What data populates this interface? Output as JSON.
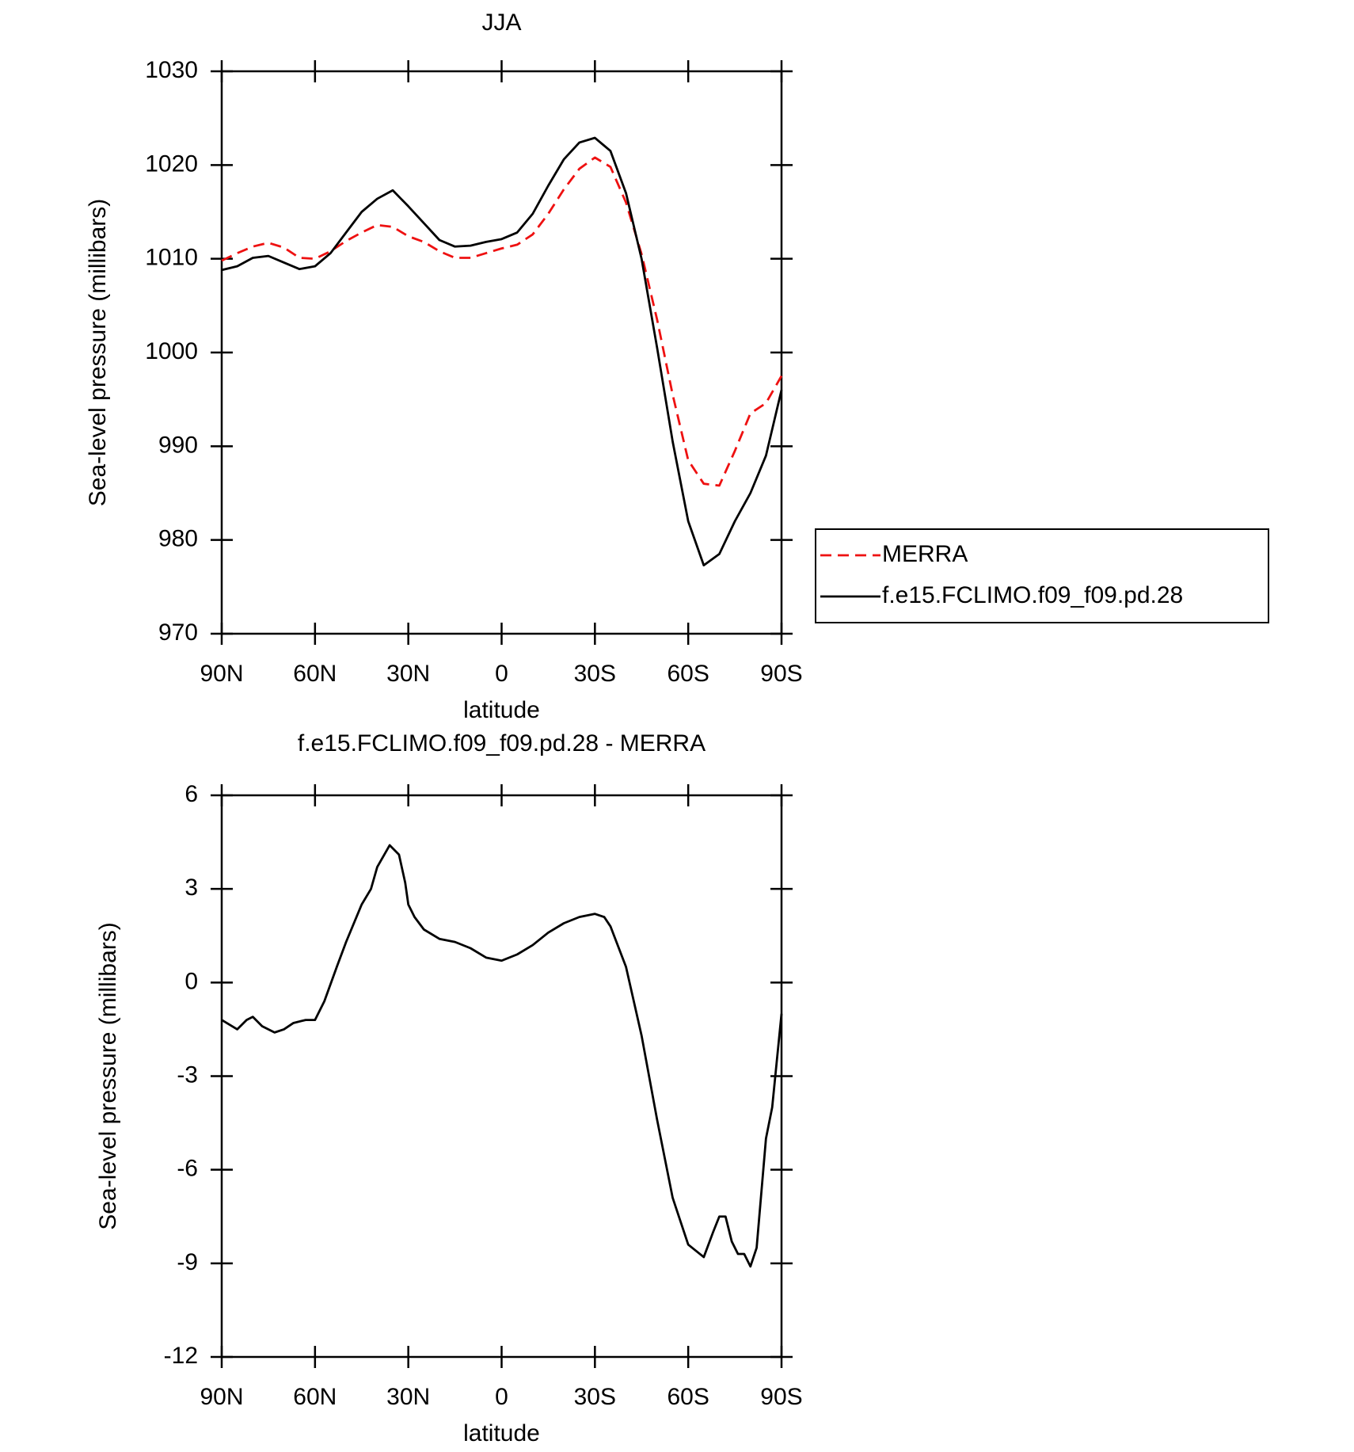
{
  "chart_data": [
    {
      "type": "line",
      "title": "JJA",
      "x_label": "latitude",
      "y_label": "Sea-level pressure (millibars)",
      "x": [
        90,
        85,
        80,
        75,
        70,
        65,
        60,
        55,
        50,
        45,
        40,
        35,
        30,
        25,
        20,
        15,
        10,
        5,
        0,
        -5,
        -10,
        -15,
        -20,
        -25,
        -30,
        -35,
        -40,
        -45,
        -50,
        -55,
        -60,
        -65,
        -70,
        -75,
        -80,
        -85,
        -90
      ],
      "series": [
        {
          "name": "MERRA",
          "color": "#ee1111",
          "line_style": "dashed",
          "values": [
            1009.8,
            1010.6,
            1011.3,
            1011.7,
            1011.2,
            1010.1,
            1010.0,
            1010.8,
            1011.9,
            1012.8,
            1013.6,
            1013.4,
            1012.4,
            1011.8,
            1010.8,
            1010.1,
            1010.1,
            1010.6,
            1011.1,
            1011.5,
            1012.6,
            1014.8,
            1017.4,
            1019.6,
            1020.8,
            1019.8,
            1016.0,
            1010.5,
            1003.5,
            995.5,
            988.5,
            986.0,
            985.8,
            989.5,
            993.5,
            994.6,
            997.5
          ]
        },
        {
          "name": "f.e15.FCLIMO.f09_f09.pd.28",
          "color": "#000000",
          "line_style": "solid",
          "values": [
            1008.8,
            1009.2,
            1010.1,
            1010.3,
            1009.6,
            1008.9,
            1009.2,
            1010.6,
            1012.8,
            1015.0,
            1016.4,
            1017.3,
            1015.6,
            1013.8,
            1012.0,
            1011.3,
            1011.4,
            1011.8,
            1012.1,
            1012.8,
            1014.8,
            1017.8,
            1020.6,
            1022.4,
            1022.9,
            1021.5,
            1017.0,
            1010.0,
            1000.5,
            990.5,
            982.0,
            977.3,
            978.5,
            982.0,
            985.0,
            989.0,
            996.0
          ]
        }
      ],
      "xlim": [
        90,
        -90
      ],
      "xticks": [
        {
          "value": 90,
          "label": "90N"
        },
        {
          "value": 60,
          "label": "60N"
        },
        {
          "value": 30,
          "label": "30N"
        },
        0,
        {
          "value": -30,
          "label": "30S"
        },
        {
          "value": -60,
          "label": "60S"
        },
        {
          "value": -90,
          "label": "90S"
        }
      ],
      "ylim": [
        970,
        1030
      ],
      "yticks": [
        970,
        980,
        990,
        1000,
        1010,
        1020,
        1030
      ],
      "legend": "right"
    },
    {
      "type": "line",
      "title": "f.e15.FCLIMO.f09_f09.pd.28 - MERRA",
      "x_label": "latitude",
      "y_label": "Sea-level pressure (millibars)",
      "x": [
        90,
        85,
        82,
        80,
        77,
        73,
        70,
        67,
        63,
        60,
        57,
        53,
        50,
        45,
        42,
        40,
        36,
        33,
        31,
        30,
        28,
        25,
        20,
        15,
        10,
        5,
        0,
        -5,
        -10,
        -15,
        -20,
        -25,
        -30,
        -33,
        -35,
        -40,
        -45,
        -50,
        -55,
        -60,
        -65,
        -68,
        -70,
        -72,
        -74,
        -76,
        -78,
        -80,
        -82,
        -85,
        -87,
        -88,
        -90
      ],
      "series": [
        {
          "color": "#000000",
          "line_style": "solid",
          "values": [
            -1.2,
            -1.5,
            -1.2,
            -1.1,
            -1.4,
            -1.6,
            -1.5,
            -1.3,
            -1.2,
            -1.2,
            -0.6,
            0.5,
            1.3,
            2.5,
            3.0,
            3.7,
            4.4,
            4.1,
            3.2,
            2.5,
            2.1,
            1.7,
            1.4,
            1.3,
            1.1,
            0.8,
            0.7,
            0.9,
            1.2,
            1.6,
            1.9,
            2.1,
            2.2,
            2.1,
            1.8,
            0.5,
            -1.7,
            -4.4,
            -6.9,
            -8.4,
            -8.8,
            -8.0,
            -7.5,
            -7.5,
            -8.3,
            -8.7,
            -8.7,
            -9.1,
            -8.5,
            -5.0,
            -4.0,
            -3.0,
            -1.0
          ]
        }
      ],
      "xlim": [
        90,
        -90
      ],
      "xticks": [
        {
          "value": 90,
          "label": "90N"
        },
        {
          "value": 60,
          "label": "60N"
        },
        {
          "value": 30,
          "label": "30N"
        },
        0,
        {
          "value": -30,
          "label": "30S"
        },
        {
          "value": -60,
          "label": "60S"
        },
        {
          "value": -90,
          "label": "90S"
        }
      ],
      "ylim": [
        -12,
        6
      ],
      "yticks": [
        -12,
        -9,
        -6,
        -3,
        0,
        3,
        6
      ]
    }
  ]
}
